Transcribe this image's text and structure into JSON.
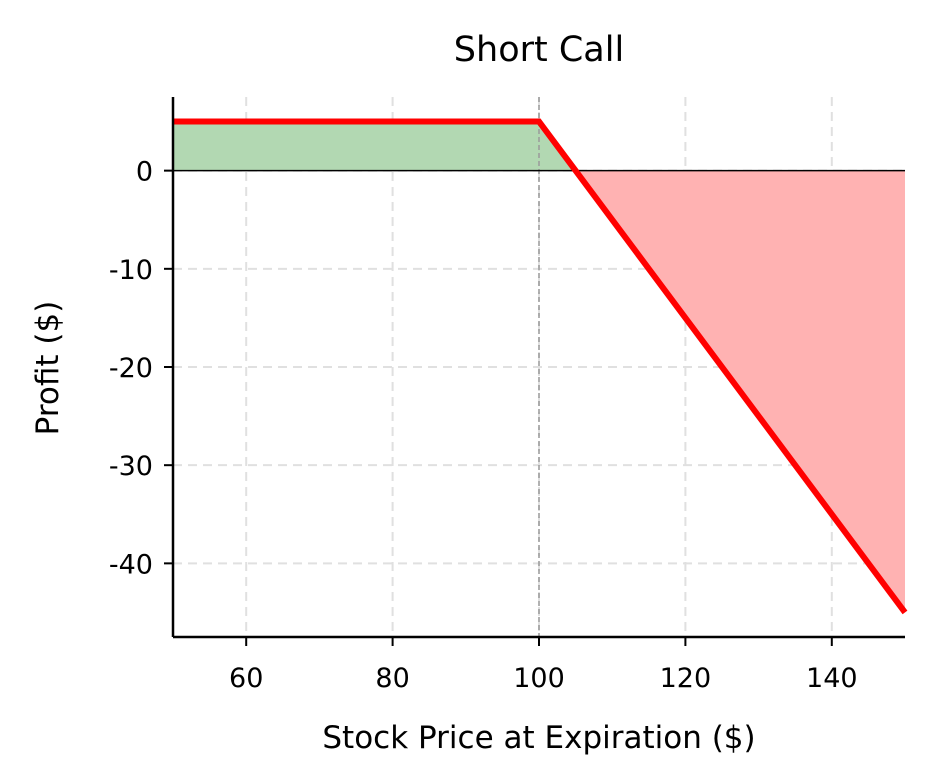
{
  "chart_data": {
    "type": "line",
    "title": "Short Call",
    "xlabel": "Stock Price at Expiration ($)",
    "ylabel": "Profit ($)",
    "xlim": [
      50,
      150
    ],
    "ylim": [
      -47.5,
      7.5
    ],
    "xticks": [
      60,
      80,
      100,
      120,
      140
    ],
    "yticks": [
      0,
      -10,
      -20,
      -30,
      -40
    ],
    "xtick_labels": [
      "60",
      "80",
      "100",
      "120",
      "140"
    ],
    "ytick_labels": [
      "0",
      "-10",
      "-20",
      "-30",
      "-40"
    ],
    "grid": true,
    "series": [
      {
        "x": [
          50,
          100,
          150
        ],
        "y": [
          5,
          5,
          -45
        ],
        "color": "#ff0000"
      }
    ],
    "strike": 100,
    "breakeven": 105,
    "profit_fill_color": "#b2d8b2",
    "loss_fill_color": "#ffb2b2",
    "strike_line_color": "#999999",
    "zero_line_color": "#000000"
  }
}
